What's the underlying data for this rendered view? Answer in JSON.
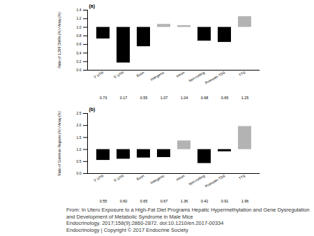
{
  "chart_data": [
    {
      "type": "bar",
      "title": "(a)",
      "y_label": "Ratio of 1,309 DMRs (%) / Array (%)",
      "categories": [
        "3' UTR",
        "5' UTR",
        "Exon",
        "Intergenic",
        "Intron",
        "Non-coding",
        "Promoter-TSS",
        "TTS"
      ],
      "values": [
        0.73,
        0.17,
        0.55,
        1.07,
        1.04,
        0.68,
        0.65,
        1.25
      ],
      "baseline": 1,
      "colors": [
        "#000000",
        "#000000",
        "#000000",
        "#b3b3b3",
        "#b3b3b3",
        "#000000",
        "#000000",
        "#b3b3b3"
      ],
      "data_labels": true,
      "ylim": [
        0,
        1.4
      ],
      "yticks": [
        {
          "value": 0,
          "label": "0.0"
        },
        0.2,
        0.4,
        0.6,
        0.8,
        {
          "value": 1,
          "label": "1.0"
        },
        1.2,
        1.4
      ]
    },
    {
      "type": "bar",
      "title": "(b)",
      "y_label": "Ratio of Common Regions (%) / Array (%)",
      "categories": [
        "3' UTR",
        "5' UTR",
        "Exon",
        "Intergenic",
        "Intron",
        "Non-coding",
        "Promoter-TSS",
        "TTS"
      ],
      "values": [
        0.55,
        0.6,
        0.65,
        0.67,
        1.36,
        0.42,
        0.91,
        1.96
      ],
      "value_labels": [
        "0.55",
        "0.60",
        "0.65",
        "0.67",
        "1.36",
        "0.42",
        "0.91",
        "1.96"
      ],
      "baseline": 1,
      "colors": [
        "#000000",
        "#000000",
        "#000000",
        "#000000",
        "#b3b3b3",
        "#000000",
        "#000000",
        "#b3b3b3"
      ],
      "data_labels": true,
      "ylim": [
        0,
        2.5
      ],
      "yticks": [
        {
          "value": 0,
          "label": "0.0"
        },
        0.5,
        {
          "value": 1,
          "label": "1.0"
        },
        1.5,
        {
          "value": 2,
          "label": "2.0"
        },
        2.5
      ]
    }
  ],
  "source": {
    "title": "From: In Utero Exposure to a High-Fat Diet Programs Hepatic Hypermethylation and Gene Dysregulation and Development of Metabolic Syndrome in Male Mice",
    "citation": "Endocrinology. 2017;158(9):2860-2872. doi:10.1210/en.2017-00334",
    "copyright": "Endocrinology | Copyright © 2017 Endocrine Society"
  }
}
